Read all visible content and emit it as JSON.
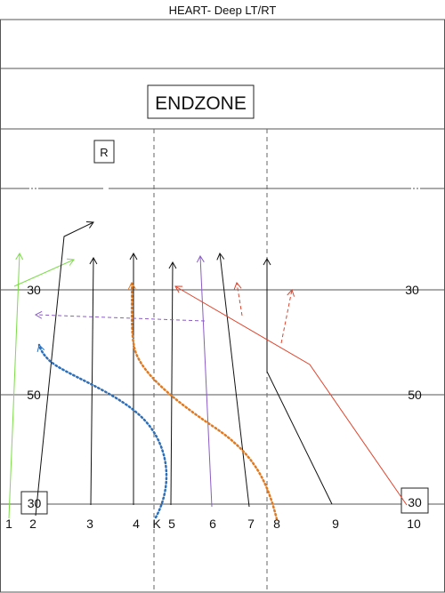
{
  "title": "HEART- Deep LT/RT",
  "endzone_label": "ENDZONE",
  "marker_r": "R",
  "yard_labels": {
    "left_30_top": "30",
    "right_30_top": "30",
    "left_50": "50",
    "right_50": "50",
    "left_30_bottom": "30",
    "right_30_bottom": "30"
  },
  "players": [
    "1",
    "2",
    "3",
    "4",
    "K",
    "5",
    "6",
    "7",
    "8",
    "9",
    "10"
  ],
  "colors": {
    "green": "#7ddc4a",
    "black": "#111111",
    "blue": "#2e6fb8",
    "orange": "#e07a22",
    "purple": "#8a5cc4",
    "red": "#e0432b",
    "grid": "#555555"
  }
}
